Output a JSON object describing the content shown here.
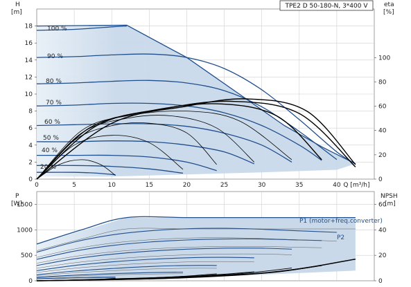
{
  "title": "TPE2 D 50-180-N, 3*400 V",
  "colors": {
    "envelope": "#c9d9ea",
    "envelope_light": "#e8f0f7",
    "curve_blue": "#1f4e8c",
    "p1_label": "#1f4e8c",
    "npsh": "#000000",
    "eff": "#000000",
    "grid": "#cfcfcf"
  },
  "chart_data": [
    {
      "name": "head-chart",
      "type": "line",
      "xlabel": "Q [m³/h]",
      "ylabel": "H",
      "ylabel_unit": "[m]",
      "y2label": "eta",
      "y2label_unit": "[%]",
      "xlim": [
        0,
        45
      ],
      "ylim": [
        0,
        20
      ],
      "y2lim": [
        0,
        140
      ],
      "xticks": [
        0,
        5,
        10,
        15,
        20,
        25,
        30,
        35,
        40
      ],
      "yticks": [
        0,
        2,
        4,
        6,
        8,
        10,
        12,
        14,
        16,
        18
      ],
      "y2ticks": [
        0,
        20,
        40,
        60,
        80,
        100
      ],
      "envelope": {
        "upper": [
          [
            0,
            18.0
          ],
          [
            12,
            18.1
          ],
          [
            20,
            14.3
          ],
          [
            27,
            10.0
          ],
          [
            33,
            6.3
          ],
          [
            38,
            3.8
          ],
          [
            42.5,
            1.8
          ]
        ],
        "lower_left": [
          [
            0,
            0.3
          ],
          [
            0,
            18.0
          ]
        ],
        "lower": [
          [
            0,
            0.3
          ],
          [
            5,
            0.3
          ],
          [
            10,
            0.3
          ],
          [
            20,
            0.55
          ],
          [
            30,
            0.8
          ],
          [
            40,
            1.1
          ],
          [
            42.5,
            1.8
          ]
        ]
      },
      "head_series": [
        {
          "name": "100 %",
          "points": [
            [
              0,
              17.5
            ],
            [
              5,
              17.6
            ],
            [
              10,
              17.9
            ],
            [
              12,
              18.0
            ]
          ]
        },
        {
          "name": "90 %",
          "points": [
            [
              0,
              14.3
            ],
            [
              5,
              14.4
            ],
            [
              10,
              14.6
            ],
            [
              15,
              14.7
            ],
            [
              20,
              14.3
            ],
            [
              25,
              13.0
            ],
            [
              30,
              10.5
            ],
            [
              35,
              7.0
            ],
            [
              40,
              3.2
            ],
            [
              42.5,
              1.8
            ]
          ]
        },
        {
          "name": "80 %",
          "points": [
            [
              0,
              11.2
            ],
            [
              5,
              11.3
            ],
            [
              10,
              11.5
            ],
            [
              15,
              11.6
            ],
            [
              20,
              11.3
            ],
            [
              25,
              10.4
            ],
            [
              30,
              8.5
            ],
            [
              35,
              5.6
            ],
            [
              40,
              2.3
            ]
          ]
        },
        {
          "name": "70 %",
          "points": [
            [
              0,
              8.6
            ],
            [
              5,
              8.7
            ],
            [
              10,
              8.9
            ],
            [
              15,
              8.9
            ],
            [
              20,
              8.6
            ],
            [
              25,
              7.8
            ],
            [
              30,
              6.3
            ],
            [
              35,
              4.0
            ],
            [
              38,
              2.2
            ]
          ]
        },
        {
          "name": "60 %",
          "points": [
            [
              0,
              6.3
            ],
            [
              5,
              6.4
            ],
            [
              10,
              6.5
            ],
            [
              15,
              6.5
            ],
            [
              20,
              6.2
            ],
            [
              25,
              5.4
            ],
            [
              30,
              4.0
            ],
            [
              34,
              2.0
            ]
          ]
        },
        {
          "name": "50 %",
          "points": [
            [
              0,
              4.4
            ],
            [
              5,
              4.4
            ],
            [
              10,
              4.5
            ],
            [
              15,
              4.4
            ],
            [
              20,
              4.0
            ],
            [
              25,
              3.2
            ],
            [
              29,
              1.8
            ]
          ]
        },
        {
          "name": "40 %",
          "points": [
            [
              0,
              2.8
            ],
            [
              5,
              2.8
            ],
            [
              10,
              2.8
            ],
            [
              15,
              2.6
            ],
            [
              20,
              2.0
            ],
            [
              24,
              1.0
            ]
          ]
        },
        {
          "name": "",
          "points": [
            [
              0,
              1.6
            ],
            [
              5,
              1.6
            ],
            [
              10,
              1.5
            ],
            [
              15,
              1.2
            ],
            [
              19.5,
              0.7
            ]
          ]
        },
        {
          "name": "20 %",
          "points": [
            [
              0,
              0.8
            ],
            [
              5,
              0.8
            ],
            [
              8,
              0.7
            ],
            [
              10.5,
              0.5
            ]
          ]
        }
      ],
      "curve_labels": [
        "100 %",
        "90 %",
        "80 %",
        "70 %",
        "60 %",
        "50 %",
        "40 %",
        "20 %"
      ],
      "eff_curves": [
        {
          "points": [
            [
              0,
              0
            ],
            [
              3,
              12
            ],
            [
              6,
              16
            ],
            [
              8.5,
              12
            ],
            [
              10.5,
              3
            ]
          ]
        },
        {
          "points": [
            [
              0,
              0
            ],
            [
              5,
              28
            ],
            [
              10,
              36
            ],
            [
              15,
              30
            ],
            [
              19.5,
              8
            ]
          ]
        },
        {
          "points": [
            [
              0,
              0
            ],
            [
              5,
              32
            ],
            [
              10,
              44
            ],
            [
              15,
              46
            ],
            [
              20,
              38
            ],
            [
              24,
              12
            ]
          ]
        },
        {
          "points": [
            [
              0,
              0
            ],
            [
              6,
              38
            ],
            [
              12,
              50
            ],
            [
              18,
              52
            ],
            [
              24,
              42
            ],
            [
              29,
              14
            ]
          ]
        },
        {
          "points": [
            [
              0,
              0
            ],
            [
              6,
              40
            ],
            [
              12,
              52
            ],
            [
              20,
              56
            ],
            [
              27,
              48
            ],
            [
              34,
              16
            ]
          ]
        },
        {
          "points": [
            [
              0,
              0
            ],
            [
              7,
              42
            ],
            [
              15,
              56
            ],
            [
              24,
              62
            ],
            [
              32,
              52
            ],
            [
              38,
              16
            ]
          ]
        },
        {
          "points": [
            [
              0,
              0
            ],
            [
              8,
              44
            ],
            [
              17,
              58
            ],
            [
              26,
              64
            ],
            [
              35,
              54
            ],
            [
              42.5,
              10
            ]
          ]
        },
        {
          "points": [
            [
              0,
              0
            ],
            [
              10,
              46
            ],
            [
              20,
              60
            ],
            [
              28,
              66
            ],
            [
              36,
              56
            ],
            [
              42.5,
              12
            ]
          ]
        }
      ]
    },
    {
      "name": "power-chart",
      "type": "line",
      "ylabel": "P",
      "ylabel_unit": "[W]",
      "y2label": "NPSH",
      "y2label_unit": "[m]",
      "xlim": [
        0,
        45
      ],
      "ylim": [
        0,
        1750
      ],
      "y2lim": [
        0,
        70
      ],
      "yticks": [
        0,
        500,
        1000,
        1500
      ],
      "y2ticks": [
        0,
        20,
        40,
        60
      ],
      "series_labels": [
        "P1 (motor+freq.converter)",
        "P2"
      ],
      "envelope": {
        "upper": [
          [
            0,
            720
          ],
          [
            12,
            1240
          ],
          [
            20,
            1240
          ],
          [
            30,
            1240
          ],
          [
            42.5,
            1240
          ]
        ],
        "lower": [
          [
            0,
            30
          ],
          [
            10,
            40
          ],
          [
            20,
            60
          ],
          [
            30,
            120
          ],
          [
            42.5,
            200
          ]
        ]
      },
      "p1_series": [
        {
          "points": [
            [
              0,
              720
            ],
            [
              6,
              1000
            ],
            [
              12,
              1240
            ],
            [
              20,
              1240
            ],
            [
              30,
              1240
            ],
            [
              42.5,
              1240
            ]
          ]
        },
        {
          "points": [
            [
              0,
              560
            ],
            [
              5,
              760
            ],
            [
              10,
              900
            ],
            [
              15,
              980
            ],
            [
              20,
              1020
            ],
            [
              25,
              1030
            ],
            [
              30,
              1010
            ],
            [
              35,
              980
            ],
            [
              40,
              950
            ]
          ]
        },
        {
          "points": [
            [
              0,
              420
            ],
            [
              5,
              580
            ],
            [
              10,
              690
            ],
            [
              15,
              760
            ],
            [
              20,
              800
            ],
            [
              25,
              820
            ],
            [
              30,
              820
            ],
            [
              35,
              800
            ],
            [
              38,
              790
            ]
          ]
        },
        {
          "points": [
            [
              0,
              300
            ],
            [
              5,
              430
            ],
            [
              10,
              520
            ],
            [
              15,
              580
            ],
            [
              20,
              620
            ],
            [
              25,
              640
            ],
            [
              30,
              640
            ],
            [
              34,
              620
            ]
          ]
        },
        {
          "points": [
            [
              0,
              200
            ],
            [
              5,
              300
            ],
            [
              10,
              370
            ],
            [
              15,
              420
            ],
            [
              20,
              450
            ],
            [
              25,
              460
            ],
            [
              29,
              450
            ]
          ]
        },
        {
          "points": [
            [
              0,
              120
            ],
            [
              5,
              190
            ],
            [
              10,
              240
            ],
            [
              15,
              280
            ],
            [
              20,
              300
            ],
            [
              24,
              300
            ]
          ]
        },
        {
          "points": [
            [
              0,
              70
            ],
            [
              5,
              110
            ],
            [
              10,
              140
            ],
            [
              15,
              160
            ],
            [
              19.5,
              170
            ]
          ]
        },
        {
          "points": [
            [
              0,
              40
            ],
            [
              5,
              60
            ],
            [
              8,
              70
            ],
            [
              10.5,
              75
            ]
          ]
        }
      ],
      "npsh_curves": [
        {
          "points": [
            [
              0,
              0
            ],
            [
              5,
              0.5
            ],
            [
              8,
              1
            ],
            [
              10.5,
              2
            ]
          ]
        },
        {
          "points": [
            [
              0,
              0
            ],
            [
              8,
              1
            ],
            [
              14,
              2
            ],
            [
              19.5,
              3.5
            ]
          ]
        },
        {
          "points": [
            [
              0,
              0
            ],
            [
              10,
              1.5
            ],
            [
              18,
              3
            ],
            [
              24,
              5.5
            ]
          ]
        },
        {
          "points": [
            [
              0,
              0
            ],
            [
              12,
              1.5
            ],
            [
              22,
              4
            ],
            [
              29,
              7
            ]
          ]
        },
        {
          "points": [
            [
              0,
              0
            ],
            [
              14,
              2
            ],
            [
              26,
              5
            ],
            [
              34,
              10
            ]
          ]
        },
        {
          "points": [
            [
              0,
              0
            ],
            [
              16,
              2
            ],
            [
              30,
              6
            ],
            [
              38,
              12
            ]
          ]
        },
        {
          "points": [
            [
              0,
              0
            ],
            [
              18,
              2
            ],
            [
              32,
              7
            ],
            [
              42.5,
              17
            ]
          ]
        }
      ]
    }
  ]
}
